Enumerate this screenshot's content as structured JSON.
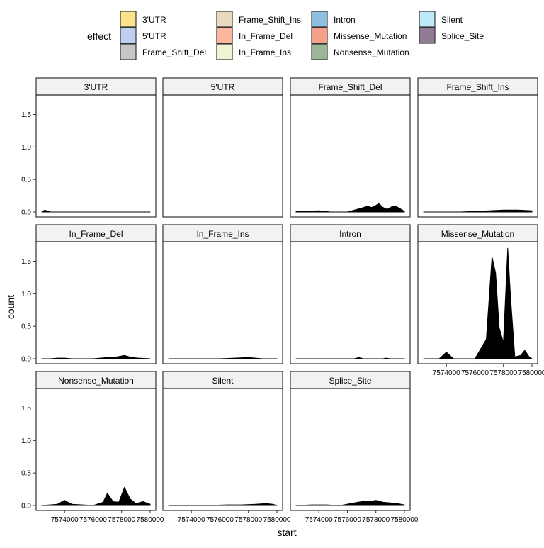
{
  "chart_data": {
    "type": "area",
    "subtype": "faceted density ridge plot",
    "xlabel": "start",
    "ylabel": "count",
    "ylim": [
      0,
      1.8
    ],
    "xlim": [
      7572400,
      7580000
    ],
    "x_ticks": [
      7574000,
      7576000,
      7578000,
      7580000
    ],
    "x_tick_labels": [
      "7574000",
      "7576000",
      "7578000",
      "7580000"
    ],
    "y_ticks": [
      0,
      0.5,
      1.0,
      1.5
    ],
    "y_tick_labels": [
      "0.0",
      "0.5",
      "1.0",
      "1.5"
    ],
    "legend": {
      "title": "effect",
      "position": "top",
      "entries": [
        {
          "label": "3'UTR",
          "color": "#FFE38A"
        },
        {
          "label": "5'UTR",
          "color": "#BFCFF2"
        },
        {
          "label": "Frame_Shift_Del",
          "color": "#C4C6C8"
        },
        {
          "label": "Frame_Shift_Ins",
          "color": "#EBD9BE"
        },
        {
          "label": "In_Frame_Del",
          "color": "#FDB79E"
        },
        {
          "label": "In_Frame_Ins",
          "color": "#EEF4D2"
        },
        {
          "label": "Intron",
          "color": "#8DBFDF"
        },
        {
          "label": "Missense_Mutation",
          "color": "#F4A08A"
        },
        {
          "label": "Nonsense_Mutation",
          "color": "#9EB497"
        },
        {
          "label": "Silent",
          "color": "#BDE9F9"
        },
        {
          "label": "Splice_Site",
          "color": "#937B97"
        }
      ]
    },
    "facets": [
      {
        "label": "3'UTR",
        "x": [
          7572400,
          7572600,
          7572750,
          7573000,
          7580000
        ],
        "y": [
          0.0,
          0.03,
          0.02,
          0.0,
          0.0
        ]
      },
      {
        "label": "5'UTR",
        "x": [],
        "y": []
      },
      {
        "label": "Frame_Shift_Del",
        "x": [
          7572400,
          7573000,
          7574000,
          7574800,
          7576000,
          7577000,
          7577400,
          7577700,
          7578000,
          7578200,
          7578500,
          7578800,
          7579100,
          7579400,
          7579700,
          7580000
        ],
        "y": [
          0.01,
          0.01,
          0.02,
          0.0,
          0.0,
          0.06,
          0.09,
          0.07,
          0.1,
          0.13,
          0.07,
          0.04,
          0.08,
          0.09,
          0.05,
          0.01
        ]
      },
      {
        "label": "Frame_Shift_Ins",
        "x": [
          7572400,
          7575000,
          7576000,
          7577000,
          7578000,
          7579000,
          7580000
        ],
        "y": [
          0.0,
          0.0,
          0.01,
          0.02,
          0.03,
          0.03,
          0.02
        ]
      },
      {
        "label": "In_Frame_Del",
        "x": [
          7572400,
          7573000,
          7573500,
          7574000,
          7574500,
          7576000,
          7577000,
          7577700,
          7578200,
          7578700,
          7579200,
          7580000
        ],
        "y": [
          0.0,
          0.0,
          0.01,
          0.01,
          0.0,
          0.0,
          0.02,
          0.03,
          0.05,
          0.02,
          0.01,
          0.0
        ]
      },
      {
        "label": "In_Frame_Ins",
        "x": [
          7572400,
          7576000,
          7577000,
          7578000,
          7578500,
          7579000,
          7580000
        ],
        "y": [
          0.0,
          0.0,
          0.01,
          0.02,
          0.01,
          0.0,
          0.0
        ]
      },
      {
        "label": "Intron",
        "x": [
          7572400,
          7576500,
          7576800,
          7577100,
          7577400,
          7578500,
          7578700,
          7579000,
          7580000
        ],
        "y": [
          0.0,
          0.0,
          0.02,
          0.0,
          0.0,
          0.0,
          0.01,
          0.0,
          0.0
        ]
      },
      {
        "label": "Missense_Mutation",
        "x": [
          7572400,
          7573500,
          7574000,
          7574500,
          7576000,
          7576800,
          7577200,
          7577450,
          7577700,
          7578000,
          7578300,
          7578500,
          7578800,
          7579200,
          7579500,
          7579800,
          7580000
        ],
        "y": [
          0.0,
          0.0,
          0.1,
          0.0,
          0.0,
          0.3,
          1.57,
          1.32,
          0.48,
          0.25,
          1.7,
          0.95,
          0.03,
          0.05,
          0.13,
          0.03,
          0.0
        ]
      },
      {
        "label": "Nonsense_Mutation",
        "x": [
          7572400,
          7573500,
          7574000,
          7574500,
          7576000,
          7576700,
          7577000,
          7577400,
          7577800,
          7578200,
          7578600,
          7579000,
          7579500,
          7580000
        ],
        "y": [
          0.0,
          0.02,
          0.08,
          0.02,
          0.0,
          0.05,
          0.19,
          0.06,
          0.05,
          0.28,
          0.1,
          0.03,
          0.06,
          0.02
        ]
      },
      {
        "label": "Silent",
        "x": [
          7572400,
          7575000,
          7576500,
          7577500,
          7578500,
          7579200,
          7579700,
          7580000
        ],
        "y": [
          0.0,
          0.0,
          0.01,
          0.01,
          0.02,
          0.03,
          0.02,
          0.0
        ]
      },
      {
        "label": "Splice_Site",
        "x": [
          7572400,
          7573500,
          7574500,
          7575500,
          7576500,
          7577000,
          7577500,
          7578000,
          7578500,
          7579000,
          7579500,
          7580000
        ],
        "y": [
          0.0,
          0.01,
          0.01,
          0.0,
          0.04,
          0.06,
          0.06,
          0.08,
          0.05,
          0.04,
          0.03,
          0.01
        ]
      }
    ]
  }
}
